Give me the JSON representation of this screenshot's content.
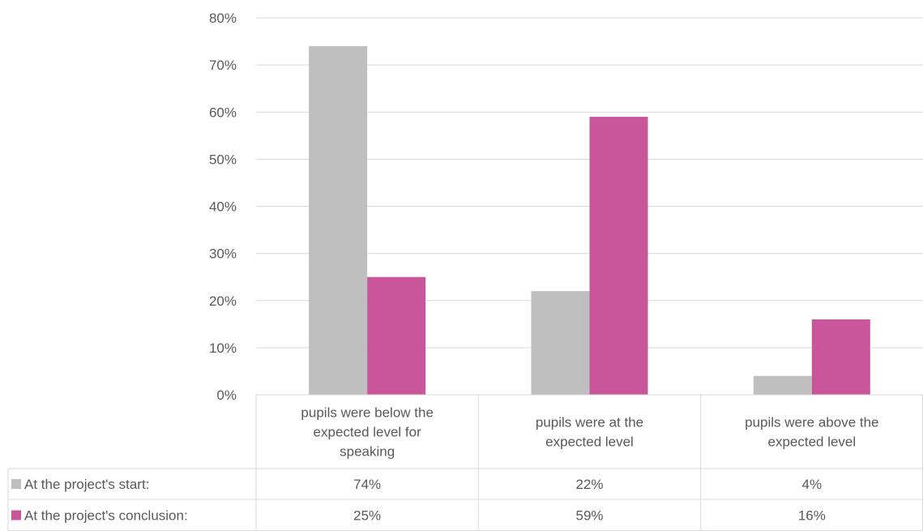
{
  "chart_data": {
    "type": "bar",
    "categories": [
      [
        "pupils were below the",
        "expected level for",
        "speaking"
      ],
      [
        "pupils were at the",
        "expected level"
      ],
      [
        "pupils were above the",
        "expected level"
      ]
    ],
    "series": [
      {
        "name": "At the project's start:",
        "values": [
          74,
          22,
          4
        ],
        "labels": [
          "74%",
          "22%",
          "4%"
        ],
        "color": "#bfbfbf"
      },
      {
        "name": "At the project's conclusion:",
        "values": [
          25,
          59,
          16
        ],
        "labels": [
          "25%",
          "59%",
          "16%"
        ],
        "color": "#c9559a"
      }
    ],
    "y_ticks": [
      "0%",
      "10%",
      "20%",
      "30%",
      "40%",
      "50%",
      "60%",
      "70%",
      "80%"
    ],
    "ylim": [
      0,
      80
    ],
    "grid": true,
    "legend": "data-table-below",
    "title": "",
    "xlabel": "",
    "ylabel": ""
  }
}
